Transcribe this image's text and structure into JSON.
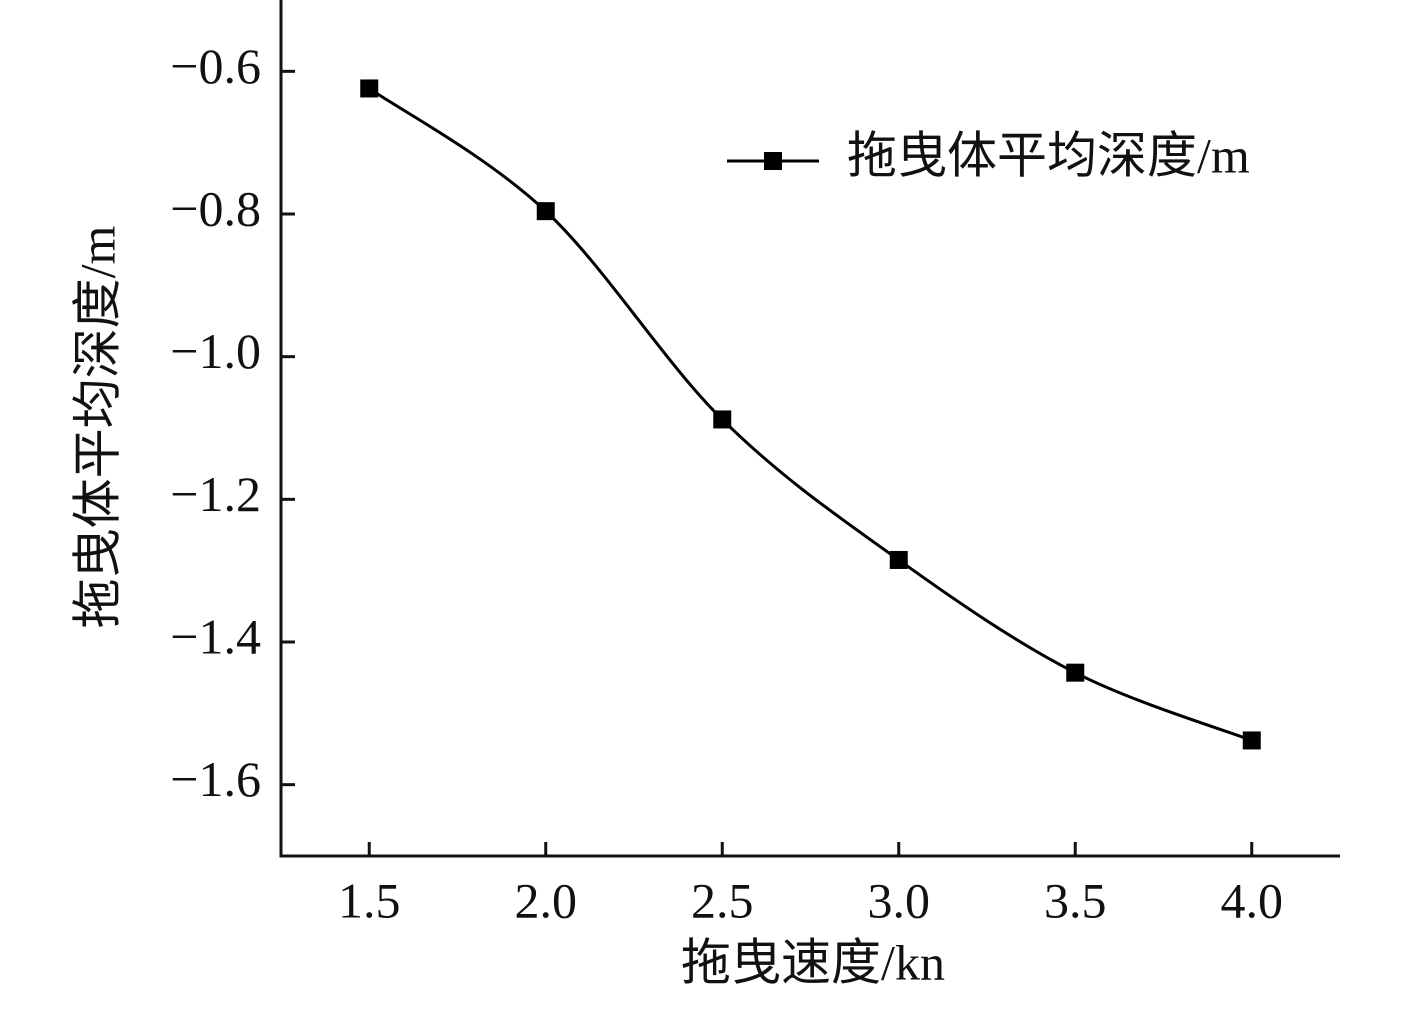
{
  "chart_data": {
    "type": "line",
    "x_label": "拖曳速度/kn",
    "y_label": "拖曳体平均深度/m",
    "x": [
      1.5,
      2.0,
      2.5,
      3.0,
      3.5,
      4.0
    ],
    "series": [
      {
        "name": "拖曳体平均深度/m",
        "color": "#000000",
        "marker": "square",
        "values": [
          -0.624,
          -0.796,
          -1.088,
          -1.285,
          -1.443,
          -1.538
        ]
      }
    ],
    "xlim": [
      1.25,
      4.25
    ],
    "xticks": [
      1.5,
      {
        "value": 2,
        "label": "2.0"
      },
      2.5,
      {
        "value": 3,
        "label": "3.0"
      },
      3.5,
      {
        "value": 4,
        "label": "4.0"
      }
    ],
    "ylim": [
      -1.7,
      -0.5
    ],
    "yticks": [
      {
        "value": -0.6,
        "label": "−0.6"
      },
      {
        "value": -0.8,
        "label": "−0.8"
      },
      {
        "value": -1.0,
        "label": "−1.0"
      },
      {
        "value": -1.2,
        "label": "−1.2"
      },
      {
        "value": -1.4,
        "label": "−1.4"
      },
      {
        "value": -1.6,
        "label": "−1.6"
      }
    ],
    "legend": "upper right",
    "smooth": true
  }
}
